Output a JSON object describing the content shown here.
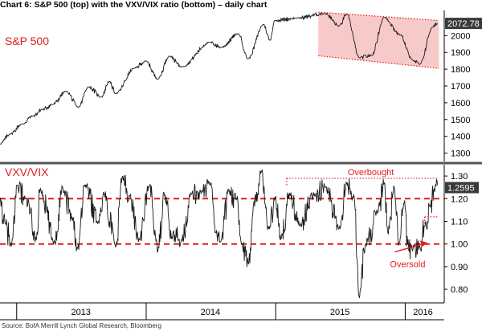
{
  "title": "Chart 6: S&P 500 (top) with the VXV/VIX ratio (bottom) – daily chart",
  "source": "Source: BofA Merrill Lynch Global Research, Bloomberg",
  "colors": {
    "line": "#1a1a1a",
    "accent_red": "#e31b1b",
    "channel_fill": "#f8c9c9",
    "last_value_box": "#3a3a3a",
    "separator": "#555555"
  },
  "chart_data": [
    {
      "type": "line",
      "panel": "top",
      "series": [
        {
          "name": "S&P 500",
          "points": [
            [
              "2012-11-15",
              1355
            ],
            [
              "2012-12-14",
              1414
            ],
            [
              "2013-01-15",
              1472
            ],
            [
              "2013-02-15",
              1520
            ],
            [
              "2013-03-15",
              1560
            ],
            [
              "2013-04-12",
              1590
            ],
            [
              "2013-05-21",
              1668
            ],
            [
              "2013-06-24",
              1573
            ],
            [
              "2013-07-22",
              1695
            ],
            [
              "2013-08-28",
              1634
            ],
            [
              "2013-09-18",
              1725
            ],
            [
              "2013-10-08",
              1656
            ],
            [
              "2013-11-29",
              1806
            ],
            [
              "2013-12-31",
              1848
            ],
            [
              "2014-02-03",
              1742
            ],
            [
              "2014-03-07",
              1878
            ],
            [
              "2014-04-11",
              1815
            ],
            [
              "2014-06-30",
              1960
            ],
            [
              "2014-07-31",
              1930
            ],
            [
              "2014-09-18",
              2011
            ],
            [
              "2014-10-15",
              1862
            ],
            [
              "2014-11-28",
              2067
            ],
            [
              "2014-12-16",
              1972
            ],
            [
              "2014-12-29",
              2090
            ],
            [
              "2015-02-27",
              2104
            ],
            [
              "2015-05-21",
              2131
            ],
            [
              "2015-06-29",
              2057
            ],
            [
              "2015-07-20",
              2128
            ],
            [
              "2015-08-25",
              1868
            ],
            [
              "2015-09-28",
              1881
            ],
            [
              "2015-11-03",
              2109
            ],
            [
              "2015-12-18",
              2005
            ],
            [
              "2016-01-20",
              1859
            ],
            [
              "2016-02-11",
              1829
            ],
            [
              "2016-03-18",
              2049
            ],
            [
              "2016-04-01",
              2072.78
            ]
          ]
        }
      ],
      "annotations": [
        {
          "type": "channel",
          "start": "2015-05-01",
          "end": "2016-04-05",
          "upper": [
            2140,
            2090
          ],
          "lower": [
            1880,
            1805
          ],
          "label": ""
        }
      ],
      "ylim": [
        1250,
        2150
      ],
      "yticks": [
        1300,
        1400,
        1500,
        1600,
        1700,
        1800,
        1900,
        2000
      ],
      "last_value": "2072.78",
      "label": "S&P 500"
    },
    {
      "type": "line",
      "panel": "bottom",
      "series": [
        {
          "name": "VXV/VIX",
          "points": [
            [
              "2012-11-15",
              1.19
            ],
            [
              "2012-11-30",
              1.09
            ],
            [
              "2012-12-17",
              0.99
            ],
            [
              "2013-01-03",
              1.26
            ],
            [
              "2013-01-25",
              1.2
            ],
            [
              "2013-02-26",
              1.02
            ],
            [
              "2013-03-08",
              1.24
            ],
            [
              "2013-04-18",
              1.01
            ],
            [
              "2013-05-10",
              1.25
            ],
            [
              "2013-06-06",
              1.12
            ],
            [
              "2013-06-21",
              0.98
            ],
            [
              "2013-07-12",
              1.26
            ],
            [
              "2013-08-20",
              1.1
            ],
            [
              "2013-09-04",
              1.22
            ],
            [
              "2013-10-08",
              0.99
            ],
            [
              "2013-10-25",
              1.29
            ],
            [
              "2013-11-15",
              1.21
            ],
            [
              "2013-12-13",
              1.02
            ],
            [
              "2014-01-10",
              1.26
            ],
            [
              "2014-02-03",
              0.97
            ],
            [
              "2014-02-21",
              1.22
            ],
            [
              "2014-03-14",
              1.03
            ],
            [
              "2014-04-11",
              1.02
            ],
            [
              "2014-05-09",
              1.22
            ],
            [
              "2014-06-06",
              1.23
            ],
            [
              "2014-07-03",
              1.27
            ],
            [
              "2014-07-17",
              1.05
            ],
            [
              "2014-08-01",
              1.02
            ],
            [
              "2014-08-22",
              1.24
            ],
            [
              "2014-09-12",
              1.2
            ],
            [
              "2014-09-26",
              1.0
            ],
            [
              "2014-10-16",
              0.91
            ],
            [
              "2014-10-31",
              1.18
            ],
            [
              "2014-11-21",
              1.32
            ],
            [
              "2014-12-12",
              1.07
            ],
            [
              "2014-12-31",
              1.2
            ],
            [
              "2015-01-15",
              1.02
            ],
            [
              "2015-02-10",
              1.22
            ],
            [
              "2015-03-10",
              1.08
            ],
            [
              "2015-04-20",
              1.22
            ],
            [
              "2015-05-20",
              1.25
            ],
            [
              "2015-06-29",
              1.07
            ],
            [
              "2015-07-20",
              1.27
            ],
            [
              "2015-08-10",
              1.21
            ],
            [
              "2015-08-24",
              0.77
            ],
            [
              "2015-09-11",
              1.0
            ],
            [
              "2015-10-16",
              1.14
            ],
            [
              "2015-11-03",
              1.27
            ],
            [
              "2015-11-13",
              1.05
            ],
            [
              "2015-12-01",
              1.25
            ],
            [
              "2015-12-14",
              1.0
            ],
            [
              "2015-12-29",
              1.18
            ],
            [
              "2016-01-08",
              1.0
            ],
            [
              "2016-01-20",
              0.98
            ],
            [
              "2016-02-11",
              0.99
            ],
            [
              "2016-02-26",
              1.08
            ],
            [
              "2016-03-10",
              1.17
            ],
            [
              "2016-03-24",
              1.23
            ],
            [
              "2016-04-01",
              1.2595
            ]
          ]
        }
      ],
      "annotations": [
        {
          "type": "hline",
          "value": 1.2,
          "style": "dashed"
        },
        {
          "type": "hline",
          "value": 1.0,
          "style": "dashed"
        },
        {
          "type": "bracket",
          "value": 1.29,
          "start": "2015-02-01",
          "end": "2016-04-05",
          "label": "Overbought"
        },
        {
          "type": "bracket",
          "value": 1.12,
          "start": "2016-02-25",
          "end": "2016-04-05",
          "label": ""
        },
        {
          "type": "arrow",
          "from": [
            "2015-11-10",
            0.965
          ],
          "to": [
            "2016-02-10",
            1.005
          ],
          "label": "Oversold"
        }
      ],
      "ylim": [
        0.74,
        1.35
      ],
      "yticks": [
        "0.80",
        "0.90",
        "1.00",
        "1.10",
        "1.20",
        "1.30"
      ],
      "last_value": "1.2595",
      "label": "VXV/VIX"
    }
  ],
  "x_axis": {
    "start": "2012-11-15",
    "end": "2016-04-20",
    "dividers": [
      "2013-01-01",
      "2014-01-01",
      "2015-01-01",
      "2016-01-01"
    ],
    "labels": [
      {
        "text": "2013",
        "date": "2013-07-01"
      },
      {
        "text": "2014",
        "date": "2014-07-01"
      },
      {
        "text": "2015",
        "date": "2015-07-01"
      },
      {
        "text": "2016",
        "date": "2016-02-20"
      }
    ]
  }
}
